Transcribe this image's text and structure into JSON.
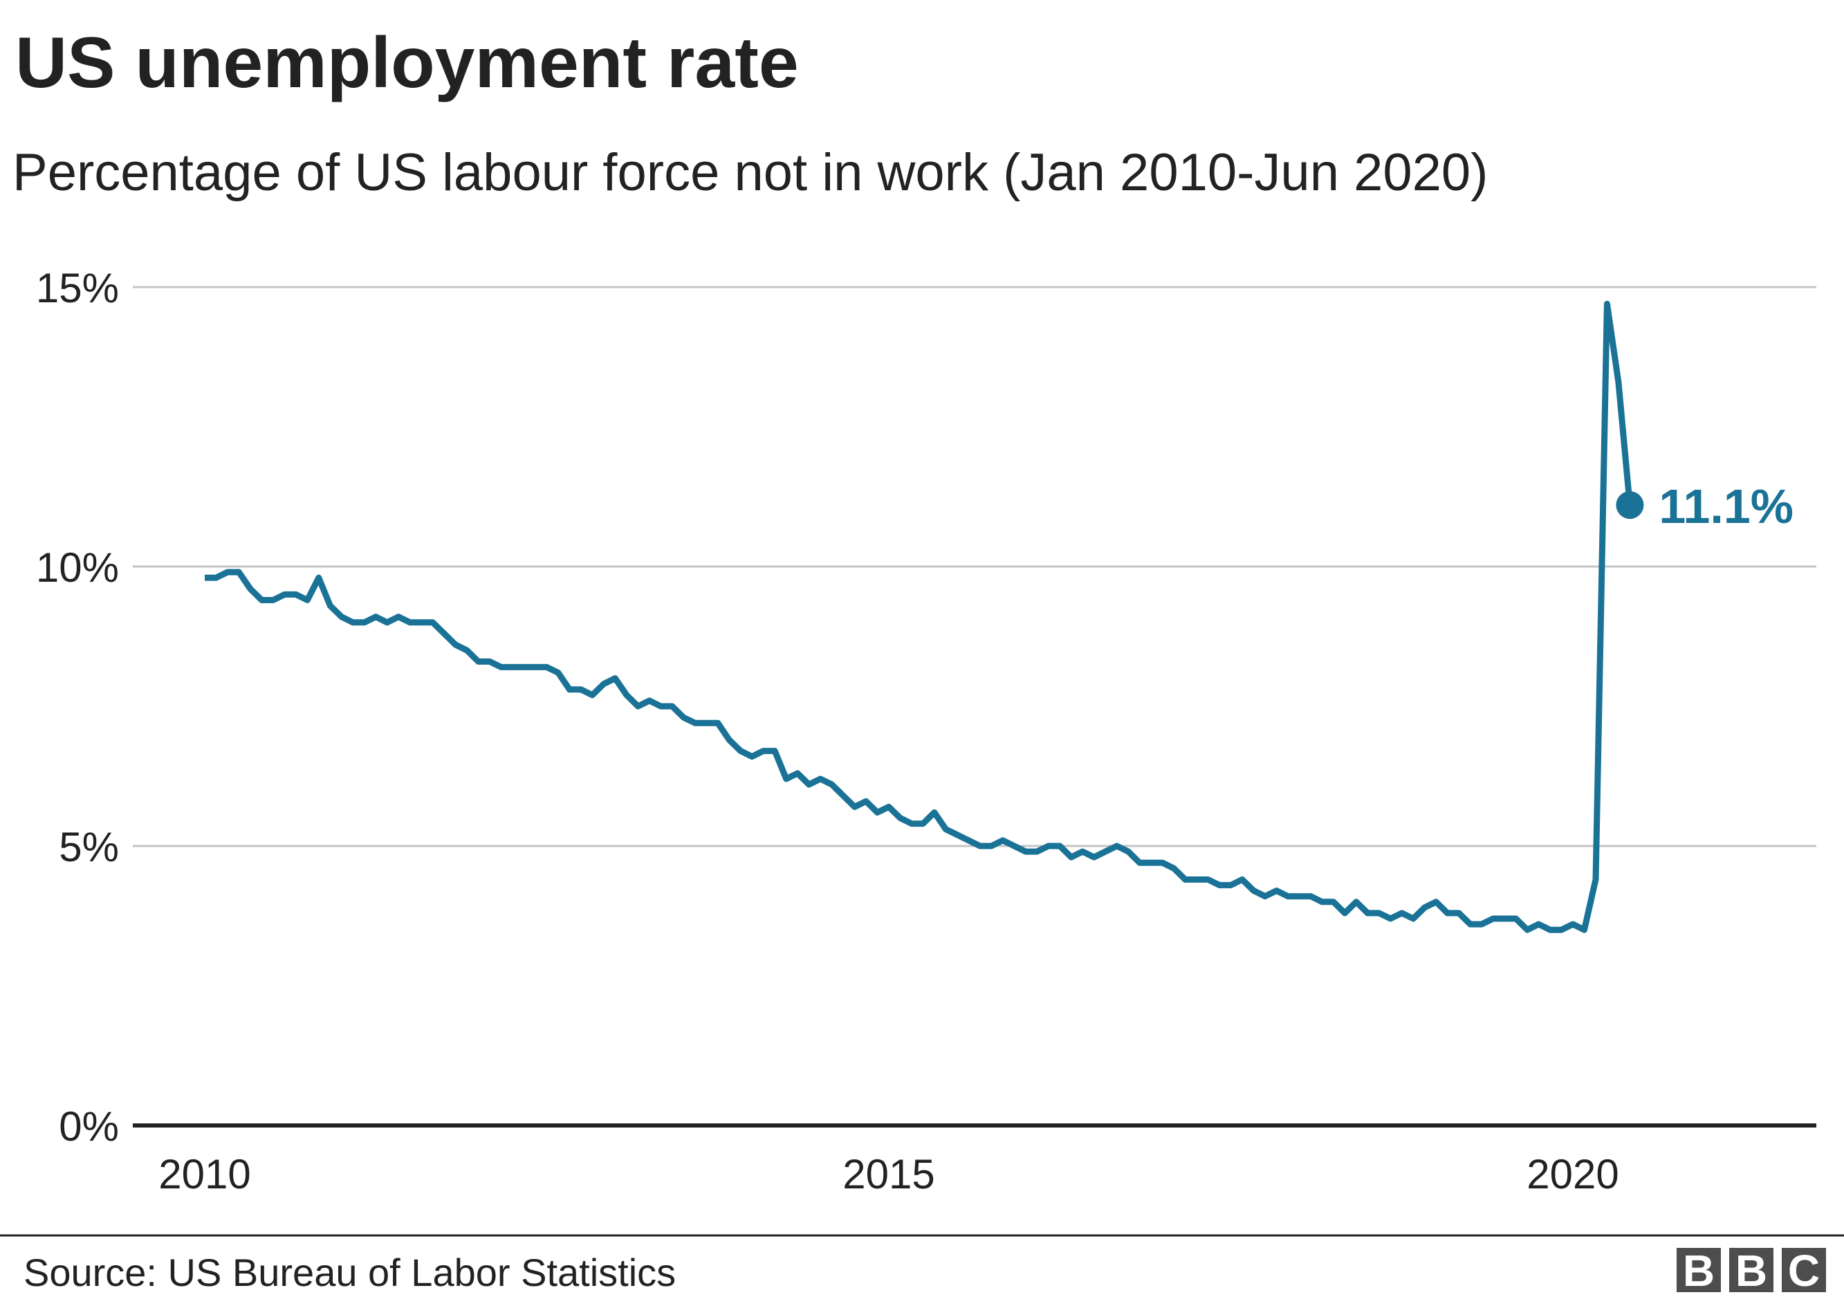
{
  "chart_data": {
    "type": "line",
    "title": "US unemployment rate",
    "subtitle": "Percentage of US labour force not in work (Jan 2010-Jun 2020)",
    "xlabel": "",
    "ylabel": "",
    "x_ticks": [
      "2010",
      "2015",
      "2020"
    ],
    "y_ticks": [
      "0%",
      "5%",
      "10%",
      "15%"
    ],
    "ylim": [
      0,
      15
    ],
    "grid": true,
    "series": [
      {
        "x_start": "2010-01",
        "frequency": "monthly",
        "values": [
          9.8,
          9.8,
          9.9,
          9.9,
          9.6,
          9.4,
          9.4,
          9.5,
          9.5,
          9.4,
          9.8,
          9.3,
          9.1,
          9.0,
          9.0,
          9.1,
          9.0,
          9.1,
          9.0,
          9.0,
          9.0,
          8.8,
          8.6,
          8.5,
          8.3,
          8.3,
          8.2,
          8.2,
          8.2,
          8.2,
          8.2,
          8.1,
          7.8,
          7.8,
          7.7,
          7.9,
          8.0,
          7.7,
          7.5,
          7.6,
          7.5,
          7.5,
          7.3,
          7.2,
          7.2,
          7.2,
          6.9,
          6.7,
          6.6,
          6.7,
          6.7,
          6.2,
          6.3,
          6.1,
          6.2,
          6.1,
          5.9,
          5.7,
          5.8,
          5.6,
          5.7,
          5.5,
          5.4,
          5.4,
          5.6,
          5.3,
          5.2,
          5.1,
          5.0,
          5.0,
          5.1,
          5.0,
          4.9,
          4.9,
          5.0,
          5.0,
          4.8,
          4.9,
          4.8,
          4.9,
          5.0,
          4.9,
          4.7,
          4.7,
          4.7,
          4.6,
          4.4,
          4.4,
          4.4,
          4.3,
          4.3,
          4.4,
          4.2,
          4.1,
          4.2,
          4.1,
          4.1,
          4.1,
          4.0,
          4.0,
          3.8,
          4.0,
          3.8,
          3.8,
          3.7,
          3.8,
          3.7,
          3.9,
          4.0,
          3.8,
          3.8,
          3.6,
          3.6,
          3.7,
          3.7,
          3.7,
          3.5,
          3.6,
          3.5,
          3.5,
          3.6,
          3.5,
          4.4,
          14.7,
          13.3,
          11.1
        ]
      }
    ],
    "end_label": "11.1%",
    "line_color": "#1a7296",
    "grid_color": "#c4c4c4",
    "axis_color": "#222222"
  },
  "footer": {
    "source": "Source: US Bureau of Labor Statistics",
    "logo_letters": [
      "B",
      "B",
      "C"
    ]
  }
}
